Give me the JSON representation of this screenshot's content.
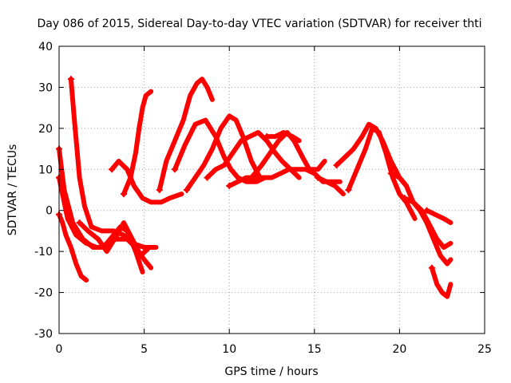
{
  "chart_data": {
    "type": "line",
    "title": "Day 086 of 2015, Sidereal Day-to-day VTEC variation (SDTVAR) for receiver thti",
    "xlabel": "GPS time / hours",
    "ylabel": "SDTVAR / TECUs",
    "xlim": [
      0,
      25
    ],
    "ylim": [
      -30,
      40
    ],
    "xticks": [
      0,
      5,
      10,
      15,
      20,
      25
    ],
    "yticks": [
      -30,
      -20,
      -10,
      0,
      10,
      20,
      30,
      40
    ],
    "grid": true,
    "color": "#ff0000",
    "series": [
      {
        "x": [
          0.7,
          0.9,
          1.2,
          1.5,
          1.9,
          2.5,
          3.2,
          3.8,
          4.3,
          5.0,
          5.6
        ],
        "y": [
          32,
          22,
          8,
          1,
          -4,
          -5,
          -5,
          -6,
          -8,
          -9,
          -9
        ]
      },
      {
        "x": [
          0.0,
          0.2,
          0.4,
          0.7,
          1.0,
          1.3,
          1.6
        ],
        "y": [
          -1,
          -3,
          -6,
          -9,
          -13,
          -16,
          -17
        ]
      },
      {
        "x": [
          0.0,
          0.5,
          1.0,
          1.6,
          2.2,
          2.7,
          3.3,
          4.0,
          4.5,
          5.0,
          5.4
        ],
        "y": [
          8,
          -2,
          -6,
          -8,
          -9,
          -9,
          -7,
          -7,
          -9,
          -12,
          -14
        ]
      },
      {
        "x": [
          0.0,
          0.3,
          0.8,
          1.4,
          2.0,
          2.6,
          3.0,
          3.6,
          4.0,
          4.5,
          4.9
        ],
        "y": [
          15,
          5,
          -3,
          -7,
          -9,
          -9,
          -7,
          -4,
          -5,
          -10,
          -15
        ]
      },
      {
        "x": [
          1.2,
          1.7,
          2.3,
          2.8,
          3.4,
          3.8,
          4.3,
          4.8,
          5.3,
          5.7
        ],
        "y": [
          -3,
          -5,
          -7,
          -10,
          -6,
          -3,
          -7,
          -11,
          -9,
          -9
        ]
      },
      {
        "x": [
          3.8,
          4.2,
          4.5,
          4.7,
          4.9,
          5.1,
          5.4
        ],
        "y": [
          4,
          8,
          14,
          20,
          25,
          28,
          29
        ]
      },
      {
        "x": [
          3.1,
          3.5,
          4.0,
          4.4,
          4.9,
          5.4,
          6.0,
          6.5,
          7.2
        ],
        "y": [
          10,
          12,
          10,
          6,
          3,
          2,
          2,
          3,
          4
        ]
      },
      {
        "x": [
          5.9,
          6.3,
          6.8,
          7.3,
          7.7,
          8.1,
          8.4,
          8.7,
          9.0
        ],
        "y": [
          5,
          12,
          17,
          22,
          28,
          31,
          32,
          30,
          27
        ]
      },
      {
        "x": [
          6.8,
          7.4,
          8.0,
          8.6,
          9.2,
          9.7,
          10.1,
          10.5,
          11.0,
          11.6,
          12.1
        ],
        "y": [
          10,
          16,
          21,
          22,
          18,
          13,
          10,
          8,
          7,
          7,
          8
        ]
      },
      {
        "x": [
          7.5,
          8.0,
          8.5,
          9.0,
          9.5,
          10.0,
          10.4,
          10.8,
          11.3,
          11.8
        ],
        "y": [
          5,
          8,
          11,
          15,
          20,
          23,
          22,
          18,
          12,
          8
        ]
      },
      {
        "x": [
          8.7,
          9.2,
          9.7,
          10.2,
          10.7,
          11.2,
          11.7,
          12.2,
          12.7,
          13.1,
          13.6,
          14.1
        ],
        "y": [
          8,
          10,
          11,
          14,
          17,
          18,
          19,
          17,
          14,
          12,
          10,
          8
        ]
      },
      {
        "x": [
          10.0,
          10.5,
          11.0,
          11.5,
          12.0,
          12.5,
          13.0,
          13.5,
          14.0,
          14.5,
          15.0,
          15.5,
          16.0,
          16.5
        ],
        "y": [
          6,
          7,
          8,
          8,
          8,
          8,
          9,
          10,
          10,
          10,
          9,
          7,
          7,
          7
        ]
      },
      {
        "x": [
          11.3,
          11.9,
          12.4,
          12.9,
          13.4,
          13.8,
          14.3,
          14.7,
          15.2,
          15.6
        ],
        "y": [
          8,
          11,
          14,
          17,
          19,
          17,
          13,
          10,
          10,
          12
        ]
      },
      {
        "x": [
          12.2,
          12.7,
          13.2,
          13.7,
          14.1
        ],
        "y": [
          18,
          18,
          19,
          18,
          17
        ]
      },
      {
        "x": [
          15.2,
          15.7,
          16.2,
          16.7
        ],
        "y": [
          8,
          7,
          6,
          4
        ]
      },
      {
        "x": [
          16.3,
          16.8,
          17.3,
          17.8,
          18.2,
          18.6,
          19.0,
          19.5,
          20.0,
          20.4
        ],
        "y": [
          11,
          13,
          15,
          18,
          21,
          20,
          17,
          12,
          8,
          6
        ]
      },
      {
        "x": [
          17.0,
          17.5,
          18.0,
          18.4,
          18.8,
          19.2,
          19.6,
          20.0,
          20.4,
          20.9
        ],
        "y": [
          5,
          10,
          15,
          20,
          19,
          14,
          8,
          4,
          2,
          -2
        ]
      },
      {
        "x": [
          19.5,
          20.0,
          20.4,
          20.8,
          21.2,
          21.6,
          22.0,
          22.4,
          22.8,
          23.0
        ],
        "y": [
          9,
          8,
          6,
          2,
          0,
          -3,
          -7,
          -11,
          -13,
          -12
        ]
      },
      {
        "x": [
          20.3,
          20.8,
          21.3,
          21.7,
          22.2,
          22.6,
          23.0
        ],
        "y": [
          3,
          2,
          0,
          -3,
          -7,
          -9,
          -8
        ]
      },
      {
        "x": [
          21.6,
          22.1,
          22.6,
          23.0
        ],
        "y": [
          0,
          -1,
          -2,
          -3
        ]
      },
      {
        "x": [
          21.9,
          22.2,
          22.5,
          22.8,
          23.0
        ],
        "y": [
          -14,
          -18,
          -20,
          -21,
          -18
        ]
      }
    ]
  }
}
